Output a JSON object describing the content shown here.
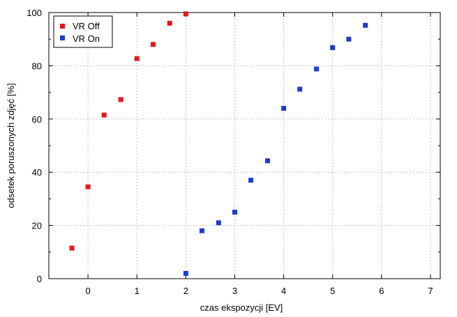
{
  "chart_data": {
    "type": "scatter",
    "xlabel": "czas ekspozycji [EV]",
    "ylabel": "odsetek poruszonych zdjęć [%]",
    "xlim": [
      -0.8,
      7.2
    ],
    "ylim": [
      0,
      100
    ],
    "xticks": [
      0,
      1,
      2,
      3,
      4,
      5,
      6,
      7
    ],
    "yticks": [
      0,
      20,
      40,
      60,
      80,
      100
    ],
    "y_minor_ticks": [
      10,
      30,
      50,
      70,
      90
    ],
    "grid": true,
    "legend_position": "top-left",
    "series": [
      {
        "name": "VR Off",
        "color": "#e8141e",
        "marker": "square",
        "x": [
          -0.33,
          0,
          0.33,
          0.67,
          1,
          1.33,
          1.67,
          2
        ],
        "y": [
          11.5,
          34.5,
          61.5,
          67.3,
          82.7,
          88,
          96,
          99.5
        ]
      },
      {
        "name": "VR On",
        "color": "#1e3cd2",
        "marker": "square",
        "x": [
          2,
          2.33,
          2.67,
          3,
          3.33,
          3.67,
          4,
          4.33,
          4.67,
          5,
          5.33,
          5.67
        ],
        "y": [
          2,
          18,
          21,
          25,
          37,
          44.3,
          64,
          71.2,
          78.8,
          86.8,
          90,
          95.2
        ]
      }
    ]
  }
}
